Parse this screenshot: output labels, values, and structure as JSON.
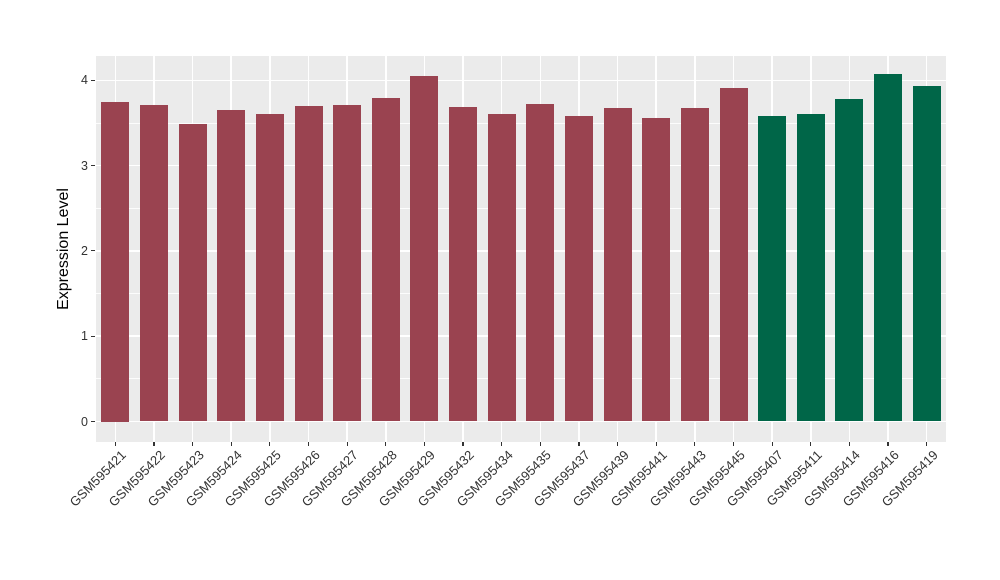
{
  "colors": {
    "panel_background": "#EBEBEB",
    "gridline": "#FFFFFF",
    "maroon_bar": "#9A4350",
    "green_bar": "#006648",
    "axis_text": "#333333",
    "axis_title": "#000000"
  },
  "chart_data": {
    "type": "bar",
    "title": "",
    "xlabel": "",
    "ylabel": "Expression Level",
    "ylim": [
      0,
      4.28
    ],
    "y_ticks": [
      0,
      1,
      2,
      3,
      4
    ],
    "y_minor_ticks": [
      0.5,
      1.5,
      2.5,
      3.5
    ],
    "grid": true,
    "legend_position": "none",
    "x_tick_angle_deg": 45,
    "categories": [
      "GSM595421",
      "GSM595422",
      "GSM595423",
      "GSM595424",
      "GSM595425",
      "GSM595426",
      "GSM595427",
      "GSM595428",
      "GSM595429",
      "GSM595432",
      "GSM595434",
      "GSM595435",
      "GSM595437",
      "GSM595439",
      "GSM595441",
      "GSM595443",
      "GSM595445",
      "GSM595407",
      "GSM595411",
      "GSM595414",
      "GSM595416",
      "GSM595419"
    ],
    "values": [
      3.75,
      3.71,
      3.49,
      3.65,
      3.61,
      3.7,
      3.71,
      3.79,
      4.05,
      3.69,
      3.61,
      3.72,
      3.58,
      3.67,
      3.56,
      3.68,
      3.91,
      3.58,
      3.61,
      3.78,
      4.07,
      3.93
    ],
    "bar_colors": [
      "#9A4350",
      "#9A4350",
      "#9A4350",
      "#9A4350",
      "#9A4350",
      "#9A4350",
      "#9A4350",
      "#9A4350",
      "#9A4350",
      "#9A4350",
      "#9A4350",
      "#9A4350",
      "#9A4350",
      "#9A4350",
      "#9A4350",
      "#9A4350",
      "#9A4350",
      "#006648",
      "#006648",
      "#006648",
      "#006648",
      "#006648"
    ],
    "color_groups": [
      {
        "color": "#9A4350",
        "count": 17
      },
      {
        "color": "#006648",
        "count": 5
      }
    ]
  }
}
